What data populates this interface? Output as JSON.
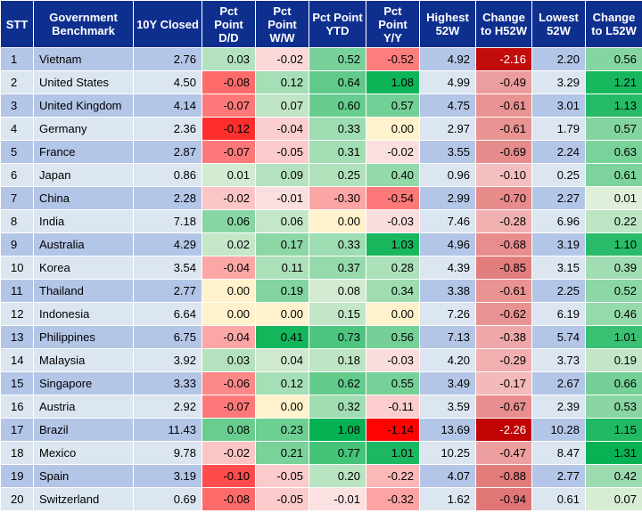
{
  "headers": [
    "STT",
    "Government Benchmark",
    "10Y Closed",
    "Pct Point D/D",
    "Pct Point W/W",
    "Pct Point YTD",
    "Pct Point Y/Y",
    "Highest 52W",
    "Change to H52W",
    "Lowest 52W",
    "Change to L52W"
  ],
  "rows": [
    {
      "stt": "1",
      "name": "Vietnam",
      "closed": "2.76",
      "dd": "0.03",
      "ww": "-0.02",
      "ytd": "0.52",
      "yy": "-0.52",
      "high": "4.92",
      "chigh": "-2.16",
      "low": "2.20",
      "clow": "0.56"
    },
    {
      "stt": "2",
      "name": "United States",
      "closed": "4.50",
      "dd": "-0.08",
      "ww": "0.12",
      "ytd": "0.64",
      "yy": "1.08",
      "high": "4.99",
      "chigh": "-0.49",
      "low": "3.29",
      "clow": "1.21"
    },
    {
      "stt": "3",
      "name": "United Kingdom",
      "closed": "4.14",
      "dd": "-0.07",
      "ww": "0.07",
      "ytd": "0.60",
      "yy": "0.57",
      "high": "4.75",
      "chigh": "-0.61",
      "low": "3.01",
      "clow": "1.13"
    },
    {
      "stt": "4",
      "name": "Germany",
      "closed": "2.36",
      "dd": "-0.12",
      "ww": "-0.04",
      "ytd": "0.33",
      "yy": "0.00",
      "high": "2.97",
      "chigh": "-0.61",
      "low": "1.79",
      "clow": "0.57"
    },
    {
      "stt": "5",
      "name": "France",
      "closed": "2.87",
      "dd": "-0.07",
      "ww": "-0.05",
      "ytd": "0.31",
      "yy": "-0.02",
      "high": "3.55",
      "chigh": "-0.69",
      "low": "2.24",
      "clow": "0.63"
    },
    {
      "stt": "6",
      "name": "Japan",
      "closed": "0.86",
      "dd": "0.01",
      "ww": "0.09",
      "ytd": "0.25",
      "yy": "0.40",
      "high": "0.96",
      "chigh": "-0.10",
      "low": "0.25",
      "clow": "0.61"
    },
    {
      "stt": "7",
      "name": "China",
      "closed": "2.28",
      "dd": "-0.02",
      "ww": "-0.01",
      "ytd": "-0.30",
      "yy": "-0.54",
      "high": "2.99",
      "chigh": "-0.70",
      "low": "2.27",
      "clow": "0.01"
    },
    {
      "stt": "8",
      "name": "India",
      "closed": "7.18",
      "dd": "0.06",
      "ww": "0.06",
      "ytd": "0.00",
      "yy": "-0.03",
      "high": "7.46",
      "chigh": "-0.28",
      "low": "6.96",
      "clow": "0.22"
    },
    {
      "stt": "9",
      "name": "Australia",
      "closed": "4.29",
      "dd": "0.02",
      "ww": "0.17",
      "ytd": "0.33",
      "yy": "1.03",
      "high": "4.96",
      "chigh": "-0.68",
      "low": "3.19",
      "clow": "1.10"
    },
    {
      "stt": "10",
      "name": "Korea",
      "closed": "3.54",
      "dd": "-0.04",
      "ww": "0.11",
      "ytd": "0.37",
      "yy": "0.28",
      "high": "4.39",
      "chigh": "-0.85",
      "low": "3.15",
      "clow": "0.39"
    },
    {
      "stt": "11",
      "name": "Thailand",
      "closed": "2.77",
      "dd": "0.00",
      "ww": "0.19",
      "ytd": "0.08",
      "yy": "0.34",
      "high": "3.38",
      "chigh": "-0.61",
      "low": "2.25",
      "clow": "0.52"
    },
    {
      "stt": "12",
      "name": "Indonesia",
      "closed": "6.64",
      "dd": "0.00",
      "ww": "0.00",
      "ytd": "0.15",
      "yy": "0.00",
      "high": "7.26",
      "chigh": "-0.62",
      "low": "6.19",
      "clow": "0.46"
    },
    {
      "stt": "13",
      "name": "Philippines",
      "closed": "6.75",
      "dd": "-0.04",
      "ww": "0.41",
      "ytd": "0.73",
      "yy": "0.56",
      "high": "7.13",
      "chigh": "-0.38",
      "low": "5.74",
      "clow": "1.01"
    },
    {
      "stt": "14",
      "name": "Malaysia",
      "closed": "3.92",
      "dd": "0.03",
      "ww": "0.04",
      "ytd": "0.18",
      "yy": "-0.03",
      "high": "4.20",
      "chigh": "-0.29",
      "low": "3.73",
      "clow": "0.19"
    },
    {
      "stt": "15",
      "name": "Singapore",
      "closed": "3.33",
      "dd": "-0.06",
      "ww": "0.12",
      "ytd": "0.62",
      "yy": "0.55",
      "high": "3.49",
      "chigh": "-0.17",
      "low": "2.67",
      "clow": "0.66"
    },
    {
      "stt": "16",
      "name": "Austria",
      "closed": "2.92",
      "dd": "-0.07",
      "ww": "0.00",
      "ytd": "0.32",
      "yy": "-0.11",
      "high": "3.59",
      "chigh": "-0.67",
      "low": "2.39",
      "clow": "0.53"
    },
    {
      "stt": "17",
      "name": "Brazil",
      "closed": "11.43",
      "dd": "0.08",
      "ww": "0.23",
      "ytd": "1.08",
      "yy": "-1.14",
      "high": "13.69",
      "chigh": "-2.26",
      "low": "10.28",
      "clow": "1.15"
    },
    {
      "stt": "18",
      "name": "Mexico",
      "closed": "9.78",
      "dd": "-0.02",
      "ww": "0.21",
      "ytd": "0.77",
      "yy": "1.01",
      "high": "10.25",
      "chigh": "-0.47",
      "low": "8.47",
      "clow": "1.31"
    },
    {
      "stt": "19",
      "name": "Spain",
      "closed": "3.19",
      "dd": "-0.10",
      "ww": "-0.05",
      "ytd": "0.20",
      "yy": "-0.22",
      "high": "4.07",
      "chigh": "-0.88",
      "low": "2.77",
      "clow": "0.42"
    },
    {
      "stt": "20",
      "name": "Switzerland",
      "closed": "0.69",
      "dd": "-0.08",
      "ww": "-0.05",
      "ytd": "-0.01",
      "yy": "-0.32",
      "high": "1.62",
      "chigh": "-0.94",
      "low": "0.61",
      "clow": "0.07"
    }
  ],
  "colors": {
    "header_bg": "#0f2f8f",
    "row_odd_bg": "#b4c6e7",
    "row_even_bg": "#dce6f1",
    "neutral_fill": "#fff2cc",
    "positive_scale": [
      "#e2efda",
      "#00b050"
    ],
    "negative_scale": [
      "#fbe3e3",
      "#ff0000"
    ],
    "change_to_high_scale": [
      "#f8c8c8",
      "#c00000"
    ]
  }
}
